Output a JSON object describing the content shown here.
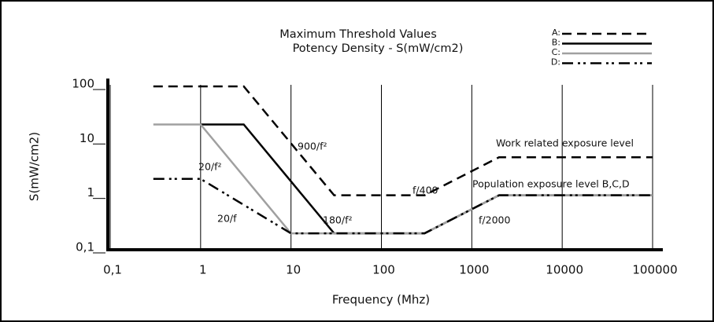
{
  "chart_data": {
    "type": "line",
    "title": "Maximum Threshold Values",
    "subtitle": "Potency Density - S(mW/cm2)",
    "xlabel": "Frequency (Mhz)",
    "ylabel": "S(mW/cm2)",
    "xscale": "log",
    "yscale": "log",
    "xlim": [
      0.1,
      100000
    ],
    "ylim": [
      0.1,
      100
    ],
    "xticks": [
      {
        "value": 0.1,
        "label": "0,1"
      },
      1,
      10,
      100,
      1000,
      10000,
      100000
    ],
    "yticks": [
      {
        "value": 0.1,
        "label": "0,1"
      },
      1,
      10,
      100
    ],
    "grid": "x",
    "legend": "upper right",
    "series": [
      {
        "name": "A:",
        "color": "#000000",
        "style": "dashed",
        "x": [
          0.3,
          3,
          30,
          300,
          2000,
          100000
        ],
        "values": [
          100,
          100,
          1,
          1,
          5,
          5
        ]
      },
      {
        "name": "B:",
        "color": "#000000",
        "style": "solid",
        "x": [
          1,
          3,
          30,
          300,
          2000,
          100000
        ],
        "values": [
          20,
          20,
          0.2,
          0.2,
          1,
          1
        ]
      },
      {
        "name": "C:",
        "color": "#a0a0a0",
        "style": "solid",
        "x": [
          0.3,
          1,
          10,
          300,
          2000,
          100000
        ],
        "values": [
          20,
          20,
          0.2,
          0.2,
          1,
          1
        ]
      },
      {
        "name": "D:",
        "color": "#000000",
        "style": "dashdot",
        "x": [
          0.3,
          1,
          10,
          300,
          2000,
          100000
        ],
        "values": [
          2,
          2,
          0.2,
          0.2,
          1,
          1
        ]
      }
    ],
    "annotations": [
      "900/f²",
      "20/f²",
      "20/f",
      "180/f²",
      "f/400",
      "f/2000",
      "Work related exposure level",
      "Population exposure level B,C,D"
    ]
  }
}
